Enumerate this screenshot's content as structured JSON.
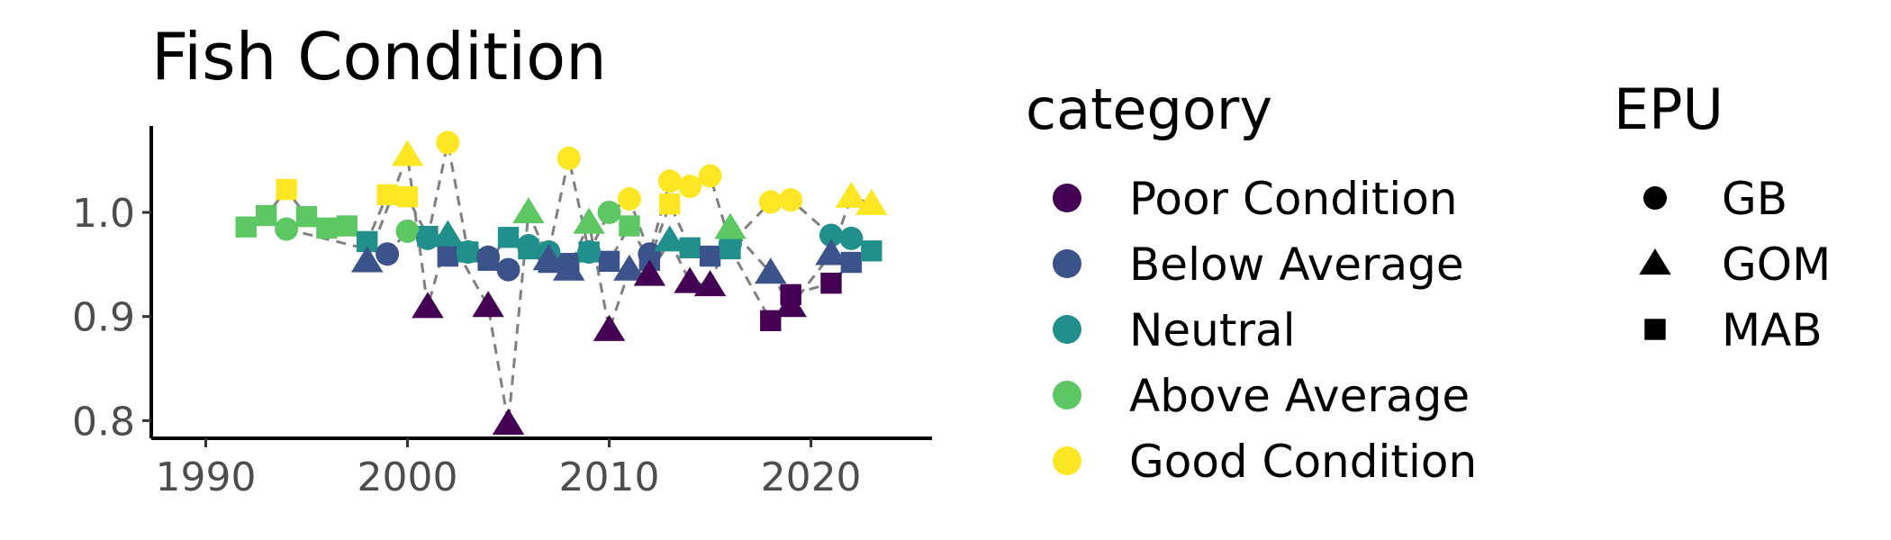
{
  "chart_data": {
    "type": "scatter",
    "title": "Fish Condition",
    "xlabel": "",
    "ylabel": "",
    "xlim": [
      1987.3,
      2026
    ],
    "ylim": [
      0.783,
      1.083
    ],
    "x_ticks": [
      1990,
      2000,
      2010,
      2020
    ],
    "y_ticks": [
      0.8,
      0.9,
      1.0
    ],
    "y_tick_labels": [
      "0.8",
      "0.9",
      "1.0"
    ],
    "grid": false,
    "connector_line": {
      "style": "dashed",
      "color": "#808080"
    },
    "legends": {
      "category": {
        "title": "category",
        "items": [
          {
            "label": "Poor Condition",
            "color": "#440154"
          },
          {
            "label": "Below Average",
            "color": "#3B528B"
          },
          {
            "label": "Neutral",
            "color": "#21908C"
          },
          {
            "label": "Above Average",
            "color": "#5DC863"
          },
          {
            "label": "Good Condition",
            "color": "#FDE725"
          }
        ]
      },
      "epu": {
        "title": "EPU",
        "items": [
          {
            "label": "GB",
            "shape": "circle"
          },
          {
            "label": "GOM",
            "shape": "triangle"
          },
          {
            "label": "MAB",
            "shape": "square"
          }
        ]
      }
    },
    "series": [
      {
        "epu": "MAB",
        "points": [
          {
            "x": 1992,
            "y": 0.986,
            "category": "Above Average"
          },
          {
            "x": 1993,
            "y": 0.997,
            "category": "Above Average"
          },
          {
            "x": 1994,
            "y": 1.022,
            "category": "Good Condition"
          },
          {
            "x": 1995,
            "y": 0.996,
            "category": "Above Average"
          },
          {
            "x": 1996,
            "y": 0.985,
            "category": "Above Average"
          },
          {
            "x": 1997,
            "y": 0.987,
            "category": "Above Average"
          },
          {
            "x": 1998,
            "y": 0.972,
            "category": "Neutral"
          },
          {
            "x": 1999,
            "y": 1.017,
            "category": "Good Condition"
          },
          {
            "x": 2000,
            "y": 1.015,
            "category": "Good Condition"
          },
          {
            "x": 2001,
            "y": 0.977,
            "category": "Neutral"
          },
          {
            "x": 2002,
            "y": 0.958,
            "category": "Below Average"
          },
          {
            "x": 2003,
            "y": 0.962,
            "category": "Neutral"
          },
          {
            "x": 2004,
            "y": 0.954,
            "category": "Below Average"
          },
          {
            "x": 2005,
            "y": 0.976,
            "category": "Neutral"
          },
          {
            "x": 2006,
            "y": 0.965,
            "category": "Neutral"
          },
          {
            "x": 2007,
            "y": 0.952,
            "category": "Below Average"
          },
          {
            "x": 2008,
            "y": 0.951,
            "category": "Below Average"
          },
          {
            "x": 2009,
            "y": 0.962,
            "category": "Neutral"
          },
          {
            "x": 2010,
            "y": 0.953,
            "category": "Below Average"
          },
          {
            "x": 2011,
            "y": 0.987,
            "category": "Above Average"
          },
          {
            "x": 2012,
            "y": 0.954,
            "category": "Below Average"
          },
          {
            "x": 2013,
            "y": 1.008,
            "category": "Good Condition"
          },
          {
            "x": 2014,
            "y": 0.966,
            "category": "Neutral"
          },
          {
            "x": 2015,
            "y": 0.958,
            "category": "Below Average"
          },
          {
            "x": 2016,
            "y": 0.965,
            "category": "Neutral"
          },
          {
            "x": 2018,
            "y": 0.896,
            "category": "Poor Condition"
          },
          {
            "x": 2019,
            "y": 0.921,
            "category": "Poor Condition"
          },
          {
            "x": 2021,
            "y": 0.932,
            "category": "Poor Condition"
          },
          {
            "x": 2022,
            "y": 0.952,
            "category": "Below Average"
          },
          {
            "x": 2023,
            "y": 0.963,
            "category": "Neutral"
          }
        ]
      },
      {
        "epu": "GB",
        "points": [
          {
            "x": 1994,
            "y": 0.984,
            "category": "Above Average"
          },
          {
            "x": 1999,
            "y": 0.96,
            "category": "Below Average"
          },
          {
            "x": 2000,
            "y": 0.982,
            "category": "Above Average"
          },
          {
            "x": 2001,
            "y": 0.975,
            "category": "Neutral"
          },
          {
            "x": 2002,
            "y": 1.067,
            "category": "Good Condition"
          },
          {
            "x": 2003,
            "y": 0.962,
            "category": "Neutral"
          },
          {
            "x": 2004,
            "y": 0.957,
            "category": "Below Average"
          },
          {
            "x": 2005,
            "y": 0.945,
            "category": "Below Average"
          },
          {
            "x": 2006,
            "y": 0.968,
            "category": "Neutral"
          },
          {
            "x": 2007,
            "y": 0.962,
            "category": "Neutral"
          },
          {
            "x": 2008,
            "y": 1.052,
            "category": "Good Condition"
          },
          {
            "x": 2009,
            "y": 0.962,
            "category": "Neutral"
          },
          {
            "x": 2010,
            "y": 1.0,
            "category": "Above Average"
          },
          {
            "x": 2011,
            "y": 1.013,
            "category": "Good Condition"
          },
          {
            "x": 2012,
            "y": 0.96,
            "category": "Below Average"
          },
          {
            "x": 2013,
            "y": 1.03,
            "category": "Good Condition"
          },
          {
            "x": 2014,
            "y": 1.025,
            "category": "Good Condition"
          },
          {
            "x": 2015,
            "y": 1.035,
            "category": "Good Condition"
          },
          {
            "x": 2016,
            "y": 0.97,
            "category": "Neutral"
          },
          {
            "x": 2018,
            "y": 1.01,
            "category": "Good Condition"
          },
          {
            "x": 2019,
            "y": 1.012,
            "category": "Good Condition"
          },
          {
            "x": 2021,
            "y": 0.978,
            "category": "Neutral"
          },
          {
            "x": 2022,
            "y": 0.975,
            "category": "Neutral"
          }
        ]
      },
      {
        "epu": "GOM",
        "points": [
          {
            "x": 1998,
            "y": 0.953,
            "category": "Below Average"
          },
          {
            "x": 2000,
            "y": 1.055,
            "category": "Good Condition"
          },
          {
            "x": 2001,
            "y": 0.909,
            "category": "Poor Condition"
          },
          {
            "x": 2002,
            "y": 0.978,
            "category": "Neutral"
          },
          {
            "x": 2004,
            "y": 0.91,
            "category": "Poor Condition"
          },
          {
            "x": 2005,
            "y": 0.797,
            "category": "Poor Condition"
          },
          {
            "x": 2006,
            "y": 1.0,
            "category": "Above Average"
          },
          {
            "x": 2007,
            "y": 0.955,
            "category": "Below Average"
          },
          {
            "x": 2008,
            "y": 0.945,
            "category": "Below Average"
          },
          {
            "x": 2009,
            "y": 0.99,
            "category": "Above Average"
          },
          {
            "x": 2010,
            "y": 0.887,
            "category": "Poor Condition"
          },
          {
            "x": 2011,
            "y": 0.945,
            "category": "Below Average"
          },
          {
            "x": 2012,
            "y": 0.94,
            "category": "Poor Condition"
          },
          {
            "x": 2013,
            "y": 0.973,
            "category": "Neutral"
          },
          {
            "x": 2014,
            "y": 0.933,
            "category": "Poor Condition"
          },
          {
            "x": 2015,
            "y": 0.93,
            "category": "Poor Condition"
          },
          {
            "x": 2016,
            "y": 0.985,
            "category": "Above Average"
          },
          {
            "x": 2018,
            "y": 0.942,
            "category": "Below Average"
          },
          {
            "x": 2019,
            "y": 0.91,
            "category": "Poor Condition"
          },
          {
            "x": 2021,
            "y": 0.96,
            "category": "Below Average"
          },
          {
            "x": 2022,
            "y": 1.015,
            "category": "Good Condition"
          },
          {
            "x": 2023,
            "y": 1.008,
            "category": "Good Condition"
          }
        ]
      }
    ]
  }
}
